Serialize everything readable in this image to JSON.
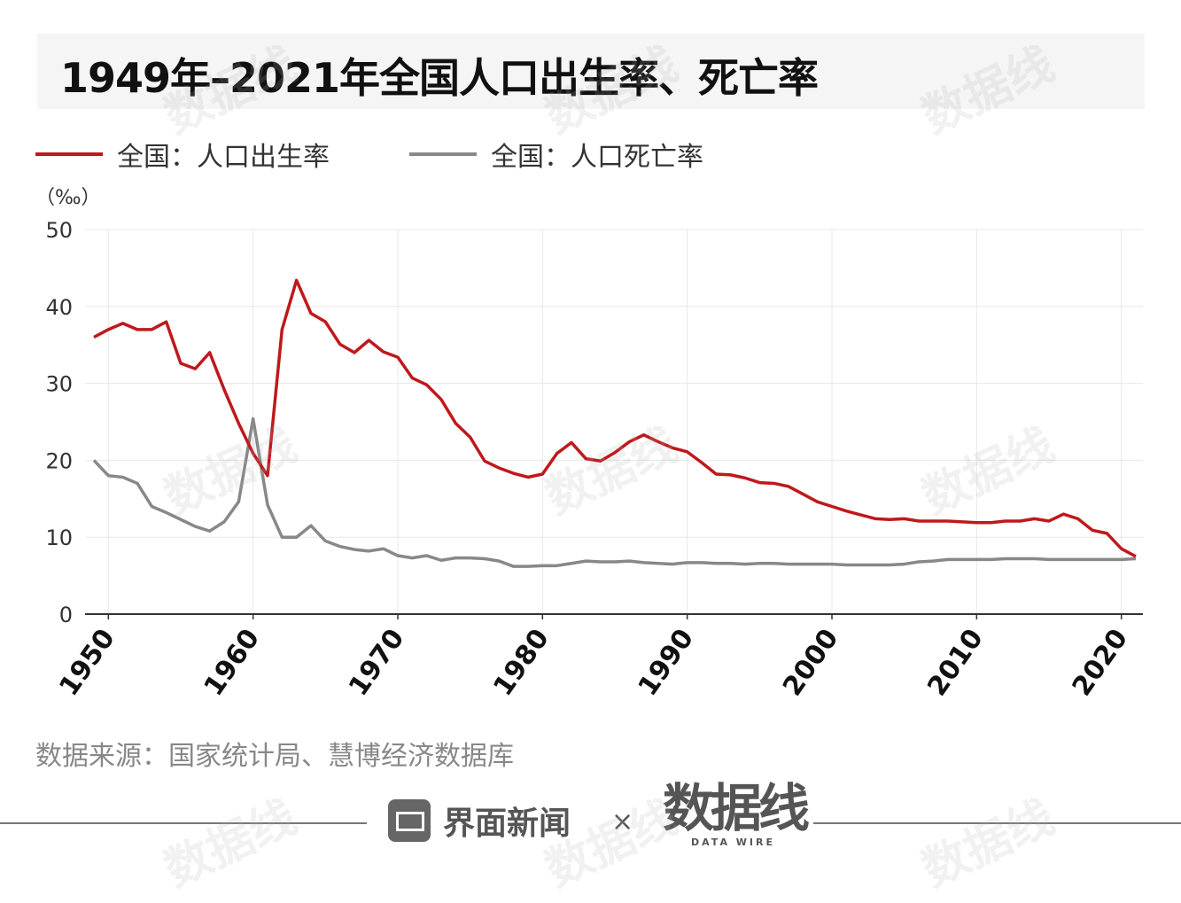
{
  "title": "1949年–2021年全国人口出生率、死亡率",
  "unit": "（‰）",
  "source": "数据来源：国家统计局、慧博经济数据库",
  "footer": {
    "brand": "界面新闻",
    "times": "×",
    "partner": "数据线",
    "partner_en": "DATA WIRE"
  },
  "watermark": "数据线",
  "colors": {
    "birth": "#c0181b",
    "death": "#888888"
  },
  "chart_data": {
    "type": "line",
    "title": "1949年–2021年全国人口出生率、死亡率",
    "ylabel": "（‰）",
    "xlim": [
      1949,
      2021
    ],
    "ylim": [
      0,
      50
    ],
    "yticks": [
      0,
      10,
      20,
      30,
      40,
      50
    ],
    "xticks": [
      1950,
      1960,
      1970,
      1980,
      1990,
      2000,
      2010,
      2020
    ],
    "grid": true,
    "legend_position": "top-left",
    "x_start": 1949,
    "series": [
      {
        "name": "全国：人口出生率",
        "color": "#c0181b",
        "values": [
          36.0,
          37.0,
          37.8,
          37.0,
          37.0,
          38.0,
          32.6,
          31.9,
          34.0,
          29.2,
          24.8,
          20.9,
          18.0,
          37.0,
          43.4,
          39.1,
          38.0,
          35.1,
          34.0,
          35.6,
          34.1,
          33.4,
          30.7,
          29.8,
          27.9,
          24.8,
          23.0,
          19.9,
          19.0,
          18.3,
          17.8,
          18.2,
          20.9,
          22.3,
          20.2,
          19.9,
          21.0,
          22.4,
          23.3,
          22.4,
          21.6,
          21.1,
          19.7,
          18.2,
          18.1,
          17.7,
          17.1,
          17.0,
          16.6,
          15.6,
          14.6,
          14.0,
          13.4,
          12.9,
          12.4,
          12.3,
          12.4,
          12.1,
          12.1,
          12.1,
          12.0,
          11.9,
          11.9,
          12.1,
          12.1,
          12.4,
          12.1,
          13.0,
          12.4,
          10.9,
          10.5,
          8.5,
          7.5
        ]
      },
      {
        "name": "全国：人口死亡率",
        "color": "#888888",
        "values": [
          20.0,
          18.0,
          17.8,
          17.0,
          14.0,
          13.2,
          12.3,
          11.4,
          10.8,
          12.0,
          14.6,
          25.4,
          14.2,
          10.0,
          10.0,
          11.5,
          9.5,
          8.8,
          8.4,
          8.2,
          8.5,
          7.6,
          7.3,
          7.6,
          7.0,
          7.3,
          7.3,
          7.2,
          6.9,
          6.2,
          6.2,
          6.3,
          6.3,
          6.6,
          6.9,
          6.8,
          6.8,
          6.9,
          6.7,
          6.6,
          6.5,
          6.7,
          6.7,
          6.6,
          6.6,
          6.5,
          6.6,
          6.6,
          6.5,
          6.5,
          6.5,
          6.5,
          6.4,
          6.4,
          6.4,
          6.4,
          6.5,
          6.8,
          6.9,
          7.1,
          7.1,
          7.1,
          7.1,
          7.2,
          7.2,
          7.2,
          7.1,
          7.1,
          7.1,
          7.1,
          7.1,
          7.1,
          7.2
        ]
      }
    ]
  }
}
